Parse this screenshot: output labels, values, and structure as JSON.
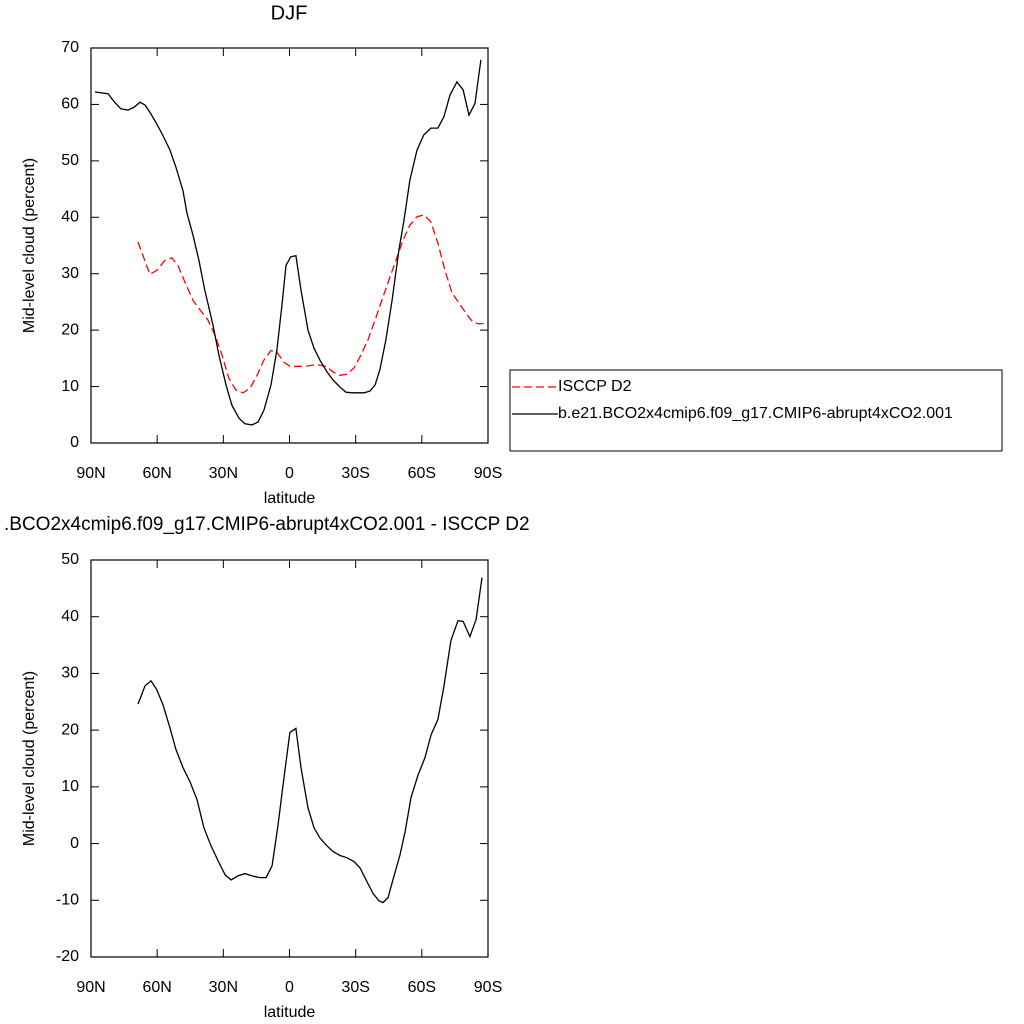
{
  "chart_data": [
    {
      "type": "line",
      "title": "DJF",
      "x_label": "latitude",
      "y_label": "Mid-level cloud (percent)",
      "xlim": [
        90,
        -90
      ],
      "ylim": [
        0,
        70
      ],
      "xticks": [
        {
          "value": 90,
          "label": "90N"
        },
        {
          "value": 60,
          "label": "60N"
        },
        {
          "value": 30,
          "label": "30N"
        },
        0,
        {
          "value": -30,
          "label": "30S"
        },
        {
          "value": -60,
          "label": "60S"
        },
        {
          "value": -90,
          "label": "90S"
        }
      ],
      "yticks": [
        0,
        10,
        20,
        30,
        40,
        50,
        60,
        70
      ],
      "legend": "right",
      "series": [
        {
          "name": "ISCCP D2",
          "color": "#ff0000",
          "dash": true,
          "x": [
            68.7,
            63.3,
            60.1,
            56.4,
            53.3,
            50.6,
            47.4,
            43.8,
            40.6,
            37.0,
            33.8,
            30.6,
            27.5,
            24.3,
            21.1,
            17.9,
            14.7,
            11.6,
            8.4,
            5.7,
            2.5,
            -0.6,
            -3.8,
            -7.0,
            -10.6,
            -13.8,
            -17.0,
            -19.7,
            -22.9,
            -26.1,
            -29.3,
            -32.4,
            -35.6,
            -38.8,
            -41.9,
            -45.1,
            -48.3,
            -51.5,
            -54.6,
            -57.8,
            -61.0,
            -64.1,
            -67.3,
            -70.5,
            -73.7,
            -76.9,
            -80.0,
            -83.2,
            -85.9,
            -88.6
          ],
          "values": [
            35.6,
            29.9,
            30.6,
            32.4,
            32.8,
            31.5,
            28.5,
            25.3,
            23.6,
            21.8,
            19.1,
            15.6,
            11.5,
            9.4,
            8.9,
            9.7,
            12.0,
            14.7,
            16.4,
            16.1,
            14.3,
            13.5,
            13.6,
            13.6,
            13.8,
            13.8,
            13.5,
            12.6,
            12.0,
            12.2,
            13.3,
            15.6,
            18.3,
            21.8,
            25.3,
            28.9,
            32.4,
            36.0,
            38.6,
            40.1,
            40.4,
            39.2,
            35.4,
            30.6,
            26.6,
            24.8,
            23.0,
            21.4,
            21.1,
            21.2
          ]
        },
        {
          "name": "b.e21.BCO2x4cmip6.f09_g17.CMIP6-abrupt4xCO2.001",
          "color": "#000000",
          "dash": false,
          "x": [
            88.2,
            82.3,
            79.1,
            76.4,
            73.2,
            70.5,
            67.8,
            65.5,
            62.8,
            60.1,
            57.4,
            54.2,
            51.5,
            48.3,
            46.5,
            43.8,
            41.1,
            38.4,
            34.7,
            32.0,
            28.8,
            26.1,
            22.9,
            20.2,
            17.0,
            14.3,
            11.6,
            8.4,
            5.7,
            3.4,
            1.6,
            -0.6,
            -2.9,
            -5.2,
            -8.4,
            -11.1,
            -13.8,
            -17.0,
            -19.7,
            -22.9,
            -25.6,
            -28.3,
            -31.1,
            -33.8,
            -36.5,
            -38.8,
            -41.0,
            -43.7,
            -46.5,
            -49.6,
            -51.9,
            -54.6,
            -57.8,
            -60.9,
            -64.1,
            -67.3,
            -70.0,
            -72.8,
            -75.9,
            -78.7,
            -81.4,
            -84.1,
            -86.8
          ],
          "values": [
            62.2,
            61.9,
            60.3,
            59.2,
            59.0,
            59.5,
            60.4,
            59.9,
            58.3,
            56.5,
            54.5,
            51.9,
            48.9,
            44.7,
            40.8,
            36.9,
            32.4,
            27.1,
            20.9,
            15.6,
            10.3,
            6.7,
            4.4,
            3.4,
            3.2,
            3.7,
            5.8,
            10.3,
            16.5,
            24.5,
            31.5,
            33.0,
            33.2,
            27.1,
            20.0,
            16.8,
            14.7,
            12.6,
            11.2,
            9.9,
            9.0,
            8.9,
            8.9,
            8.9,
            9.2,
            10.3,
            13.0,
            18.3,
            25.3,
            34.2,
            39.5,
            46.6,
            51.9,
            54.6,
            55.8,
            55.8,
            57.8,
            61.7,
            64.0,
            62.6,
            58.1,
            60.2,
            67.9
          ]
        }
      ]
    },
    {
      "type": "line",
      "title": ".BCO2x4cmip6.f09_g17.CMIP6-abrupt4xCO2.001 - ISCCP D2",
      "x_label": "latitude",
      "y_label": "Mid-level cloud (percent)",
      "xlim": [
        90,
        -90
      ],
      "ylim": [
        -20,
        50
      ],
      "xticks": [
        {
          "value": 90,
          "label": "90N"
        },
        {
          "value": 60,
          "label": "60N"
        },
        {
          "value": 30,
          "label": "30N"
        },
        0,
        {
          "value": -30,
          "label": "30S"
        },
        {
          "value": -60,
          "label": "60S"
        },
        {
          "value": -90,
          "label": "90S"
        }
      ],
      "yticks": [
        -20,
        -10,
        0,
        10,
        20,
        30,
        40,
        50
      ],
      "series": [
        {
          "color": "#000000",
          "dash": false,
          "x": [
            68.7,
            65.5,
            62.8,
            60.1,
            57.4,
            54.2,
            51.5,
            48.3,
            45.1,
            41.9,
            38.8,
            35.6,
            32.4,
            29.2,
            26.5,
            23.4,
            20.2,
            17.0,
            13.4,
            10.6,
            7.9,
            5.2,
            2.9,
            -0.2,
            -2.9,
            -5.2,
            -8.4,
            -11.1,
            -13.8,
            -17.0,
            -19.7,
            -22.9,
            -26.1,
            -29.3,
            -32.0,
            -35.1,
            -37.9,
            -40.6,
            -42.4,
            -44.7,
            -46.9,
            -50.1,
            -52.4,
            -55.1,
            -58.3,
            -61.4,
            -64.2,
            -67.3,
            -70.0,
            -73.2,
            -76.4,
            -78.7,
            -81.8,
            -84.6,
            -87.3
          ],
          "values": [
            24.6,
            27.8,
            28.7,
            27.1,
            24.5,
            20.4,
            16.6,
            13.4,
            10.9,
            7.7,
            2.8,
            -0.4,
            -3.0,
            -5.5,
            -6.4,
            -5.7,
            -5.3,
            -5.7,
            -6.0,
            -6.0,
            -3.9,
            3.2,
            10.4,
            19.6,
            20.3,
            13.4,
            6.3,
            2.8,
            1.0,
            -0.4,
            -1.4,
            -2.1,
            -2.5,
            -3.2,
            -4.3,
            -6.7,
            -8.8,
            -10.1,
            -10.4,
            -9.5,
            -6.4,
            -2.0,
            2.1,
            8.1,
            12.1,
            15.1,
            19.2,
            21.9,
            27.7,
            35.8,
            39.3,
            39.2,
            36.5,
            39.5,
            46.9
          ]
        }
      ]
    }
  ]
}
